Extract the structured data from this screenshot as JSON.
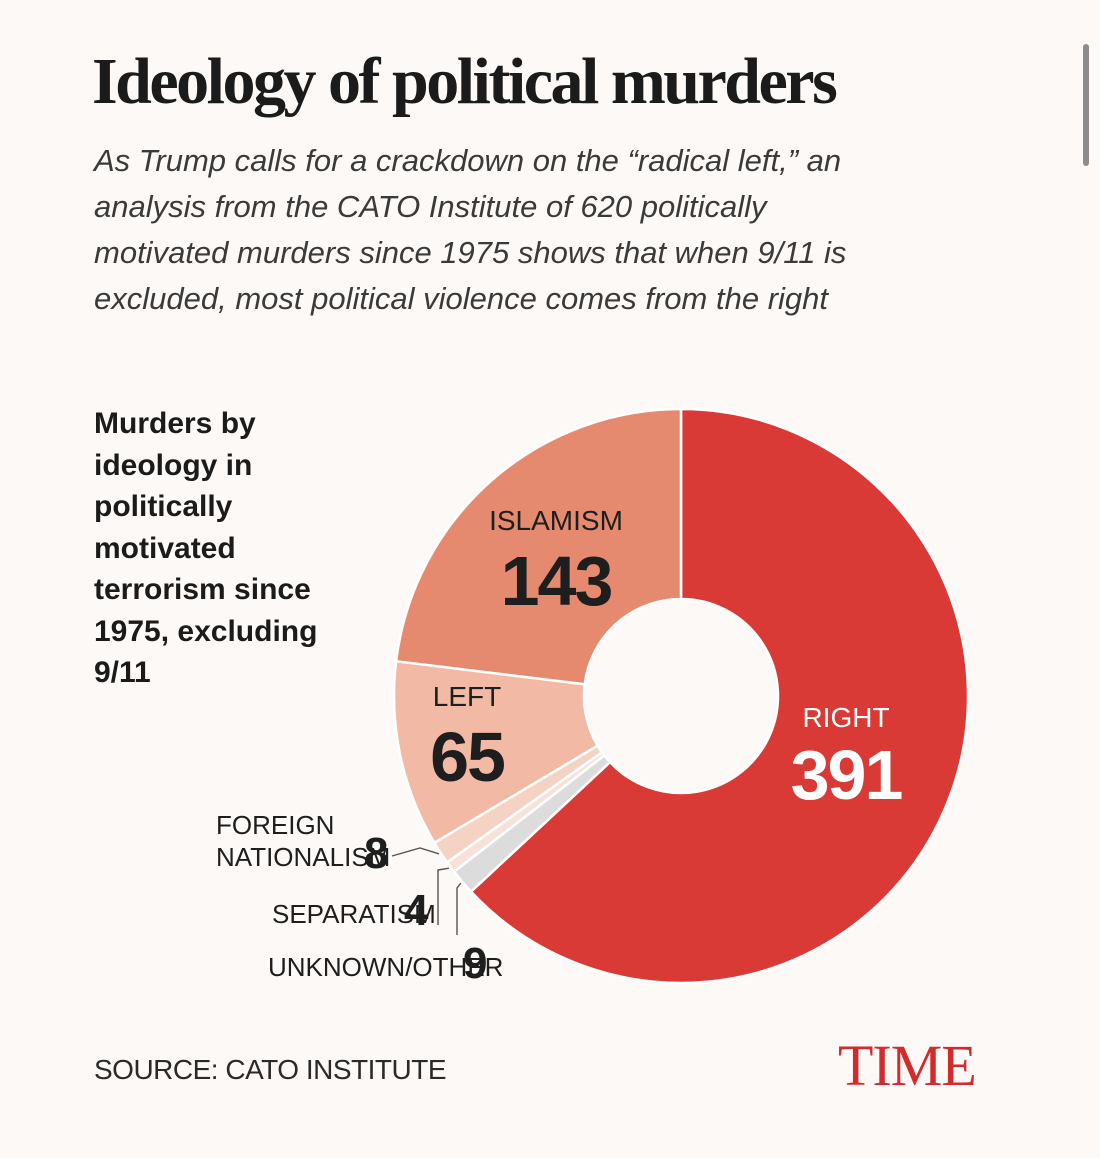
{
  "header": {
    "title": "Ideology of political murders",
    "subtitle": "As Trump calls for a crackdown on the “radical left,” an analysis from the CATO Institute of 620 politically motivated murders since 1975 shows that when 9/11 is excluded, most political violence comes from the right"
  },
  "chart_heading": "Murders by ideology in politically motivated terrorism since 1975, excluding 9/11",
  "chart_data": {
    "type": "pie",
    "title": "Murders by ideology in politically motivated terrorism since 1975, excluding 9/11",
    "donut": true,
    "slices": [
      {
        "label": "RIGHT",
        "value": 391,
        "color": "#d93a35"
      },
      {
        "label": "UNKNOWN/OTHER",
        "value": 9,
        "color": "#dcdcdc"
      },
      {
        "label": "SEPARATISM",
        "value": 4,
        "color": "#f6e2d8"
      },
      {
        "label": "FOREIGN NATIONALISM",
        "value": 8,
        "color": "#f4d3c4"
      },
      {
        "label": "LEFT",
        "value": 65,
        "color": "#f2baa4"
      },
      {
        "label": "ISLAMISM",
        "value": 143,
        "color": "#e58a6e"
      }
    ]
  },
  "footer": {
    "source": "SOURCE: CATO INSTITUTE",
    "logo": "TIME"
  }
}
